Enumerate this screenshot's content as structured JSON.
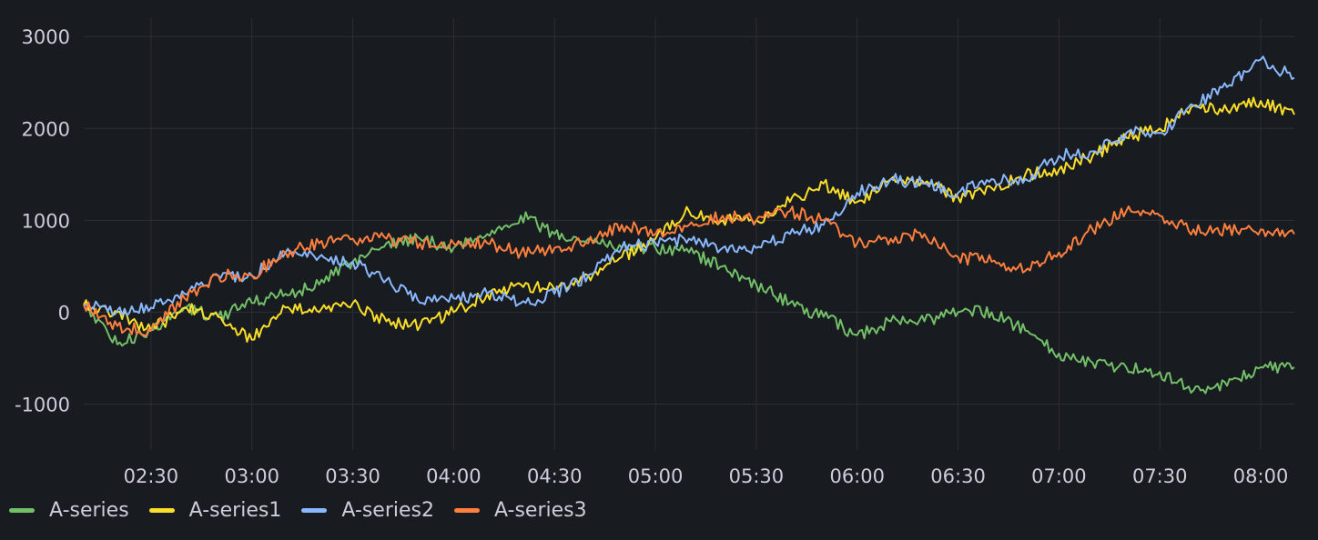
{
  "chart_data": {
    "type": "line",
    "title": "",
    "xlabel": "",
    "ylabel": "",
    "x_ticks": [
      "02:30",
      "03:00",
      "03:30",
      "04:00",
      "04:30",
      "05:00",
      "05:30",
      "06:00",
      "06:30",
      "07:00",
      "07:30",
      "08:00"
    ],
    "x_range": [
      "02:10",
      "08:10"
    ],
    "y_ticks": [
      "-1000",
      "0",
      "1000",
      "2000",
      "3000"
    ],
    "ylim": [
      -1500,
      3200
    ],
    "grid": true,
    "legend_position": "bottom-left",
    "series": [
      {
        "name": "A-series",
        "color": "#73bf69",
        "x": [
          "02:10",
          "02:20",
          "02:30",
          "02:40",
          "02:50",
          "03:00",
          "03:10",
          "03:20",
          "03:30",
          "03:40",
          "03:50",
          "04:00",
          "04:10",
          "04:20",
          "04:30",
          "04:40",
          "04:50",
          "05:00",
          "05:10",
          "05:20",
          "05:30",
          "05:40",
          "05:50",
          "06:00",
          "06:10",
          "06:20",
          "06:30",
          "06:40",
          "06:50",
          "07:00",
          "07:10",
          "07:20",
          "07:30",
          "07:40",
          "07:50",
          "08:00",
          "08:10"
        ],
        "values": [
          80,
          -350,
          -200,
          50,
          -50,
          100,
          200,
          300,
          550,
          750,
          800,
          700,
          850,
          1050,
          850,
          800,
          700,
          700,
          650,
          500,
          300,
          100,
          -50,
          -250,
          -100,
          -100,
          0,
          0,
          -200,
          -450,
          -550,
          -600,
          -650,
          -850,
          -800,
          -600,
          -600
        ]
      },
      {
        "name": "A-series1",
        "color": "#fade2a",
        "x": [
          "02:10",
          "02:20",
          "02:30",
          "02:40",
          "02:50",
          "03:00",
          "03:10",
          "03:20",
          "03:30",
          "03:40",
          "03:50",
          "04:00",
          "04:10",
          "04:20",
          "04:30",
          "04:40",
          "04:50",
          "05:00",
          "05:10",
          "05:20",
          "05:30",
          "05:40",
          "05:50",
          "06:00",
          "06:10",
          "06:20",
          "06:30",
          "06:40",
          "06:50",
          "07:00",
          "07:10",
          "07:20",
          "07:30",
          "07:40",
          "07:50",
          "08:00",
          "08:10"
        ],
        "values": [
          80,
          0,
          -200,
          50,
          -50,
          -300,
          50,
          0,
          100,
          -100,
          -150,
          0,
          200,
          300,
          250,
          400,
          600,
          800,
          1100,
          1000,
          1000,
          1200,
          1400,
          1200,
          1450,
          1400,
          1250,
          1350,
          1500,
          1550,
          1700,
          1900,
          2000,
          2250,
          2200,
          2300,
          2150
        ]
      },
      {
        "name": "A-series2",
        "color": "#8ab8ff",
        "x": [
          "02:10",
          "02:20",
          "02:30",
          "02:40",
          "02:50",
          "03:00",
          "03:10",
          "03:20",
          "03:30",
          "03:40",
          "03:50",
          "04:00",
          "04:10",
          "04:20",
          "04:30",
          "04:40",
          "04:50",
          "05:00",
          "05:10",
          "05:20",
          "05:30",
          "05:40",
          "05:50",
          "06:00",
          "06:10",
          "06:20",
          "06:30",
          "06:40",
          "06:50",
          "07:00",
          "07:10",
          "07:20",
          "07:30",
          "07:40",
          "07:50",
          "08:00",
          "08:10"
        ],
        "values": [
          80,
          20,
          50,
          200,
          400,
          400,
          650,
          600,
          550,
          350,
          100,
          150,
          200,
          100,
          200,
          400,
          700,
          750,
          800,
          700,
          700,
          850,
          950,
          1300,
          1450,
          1400,
          1300,
          1450,
          1450,
          1700,
          1750,
          1950,
          1950,
          2250,
          2450,
          2750,
          2550
        ]
      },
      {
        "name": "A-series3",
        "color": "#ff7f3f",
        "x": [
          "02:10",
          "02:20",
          "02:30",
          "02:40",
          "02:50",
          "03:00",
          "03:10",
          "03:20",
          "03:30",
          "03:40",
          "03:50",
          "04:00",
          "04:10",
          "04:20",
          "04:30",
          "04:40",
          "04:50",
          "05:00",
          "05:10",
          "05:20",
          "05:30",
          "05:40",
          "05:50",
          "06:00",
          "06:10",
          "06:20",
          "06:30",
          "06:40",
          "06:50",
          "07:00",
          "07:10",
          "07:20",
          "07:30",
          "07:40",
          "07:50",
          "08:00",
          "08:10"
        ],
        "values": [
          80,
          -150,
          -200,
          150,
          400,
          400,
          650,
          750,
          800,
          800,
          750,
          750,
          750,
          650,
          700,
          750,
          950,
          850,
          950,
          1050,
          1000,
          1100,
          1000,
          750,
          800,
          850,
          600,
          550,
          450,
          650,
          900,
          1100,
          1050,
          900,
          900,
          900,
          850
        ]
      }
    ]
  },
  "legend": {
    "items": [
      {
        "label": "A-series",
        "color": "#73bf69"
      },
      {
        "label": "A-series1",
        "color": "#fade2a"
      },
      {
        "label": "A-series2",
        "color": "#8ab8ff"
      },
      {
        "label": "A-series3",
        "color": "#ff7f3f"
      }
    ]
  }
}
